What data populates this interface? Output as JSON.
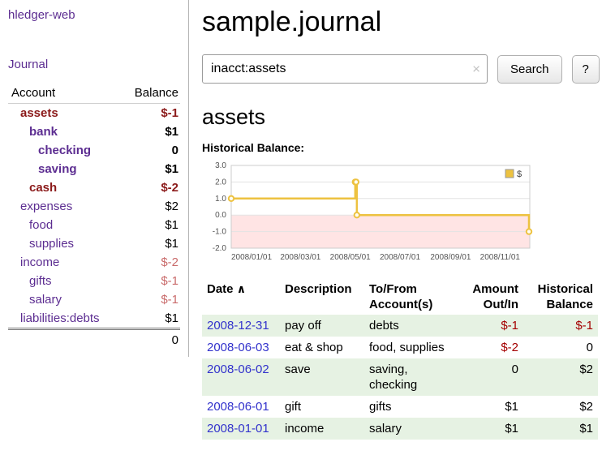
{
  "app": {
    "title": "hledger-web"
  },
  "sidebar": {
    "journal_link": "Journal",
    "accounts_table": {
      "col_account": "Account",
      "col_balance": "Balance",
      "rows": [
        {
          "account": "assets",
          "balance": "$-1",
          "indent": 1,
          "bold": true,
          "account_color": "red",
          "balance_color": "red"
        },
        {
          "account": "bank",
          "balance": "$1",
          "indent": 2,
          "bold": true,
          "account_color": "purple",
          "balance_color": "black"
        },
        {
          "account": "checking",
          "balance": "0",
          "indent": 3,
          "bold": true,
          "account_color": "purple",
          "balance_color": "black"
        },
        {
          "account": "saving",
          "balance": "$1",
          "indent": 3,
          "bold": true,
          "account_color": "purple",
          "balance_color": "black"
        },
        {
          "account": "cash",
          "balance": "$-2",
          "indent": 2,
          "bold": true,
          "account_color": "red",
          "balance_color": "red"
        },
        {
          "account": "expenses",
          "balance": "$2",
          "indent": 1,
          "bold": false,
          "account_color": "purple",
          "balance_color": "black"
        },
        {
          "account": "food",
          "balance": "$1",
          "indent": 2,
          "bold": false,
          "account_color": "purple",
          "balance_color": "black"
        },
        {
          "account": "supplies",
          "balance": "$1",
          "indent": 2,
          "bold": false,
          "account_color": "purple",
          "balance_color": "black"
        },
        {
          "account": "income",
          "balance": "$-2",
          "indent": 1,
          "bold": false,
          "account_color": "purple",
          "balance_color": "pink"
        },
        {
          "account": "gifts",
          "balance": "$-1",
          "indent": 2,
          "bold": false,
          "account_color": "purple",
          "balance_color": "pink"
        },
        {
          "account": "salary",
          "balance": "$-1",
          "indent": 2,
          "bold": false,
          "account_color": "purple",
          "balance_color": "pink"
        },
        {
          "account": "liabilities:debts",
          "balance": "$1",
          "indent": 1,
          "bold": false,
          "account_color": "purple",
          "balance_color": "black"
        }
      ],
      "total": "0"
    }
  },
  "main": {
    "title": "sample.journal",
    "search": {
      "value": "inacct:assets",
      "clear_icon": "×",
      "search_button": "Search",
      "help_button": "?"
    },
    "account_heading": "assets"
  },
  "chart_data": {
    "type": "line",
    "step": true,
    "title": "Historical Balance:",
    "x_type": "date",
    "xlim": [
      "2008-01-01",
      "2009-01-01"
    ],
    "ylim": [
      -2,
      3
    ],
    "yticks": [
      3.0,
      2.0,
      1.0,
      0.0,
      -1.0,
      -2.0
    ],
    "xticks": [
      "2008/01/01",
      "2008/03/01",
      "2008/05/01",
      "2008/07/01",
      "2008/09/01",
      "2008/11/01"
    ],
    "series": [
      {
        "name": "$",
        "color": "#edc240",
        "points": [
          [
            "2008-01-01",
            1
          ],
          [
            "2008-06-01",
            2
          ],
          [
            "2008-06-02",
            2
          ],
          [
            "2008-06-03",
            0
          ],
          [
            "2008-12-31",
            -1
          ]
        ]
      }
    ],
    "legend_position": "top-right",
    "grid": true,
    "negative_region_color": "#ffe4e4"
  },
  "register_table": {
    "headers": {
      "date": "Date",
      "sort_indicator": "∧",
      "description": "Description",
      "account": "To/From Account(s)",
      "amount": "Amount Out/In",
      "balance": "Historical Balance"
    },
    "rows": [
      {
        "date": "2008-12-31",
        "description": "pay off",
        "account": "debts",
        "amount": "$-1",
        "balance": "$-1"
      },
      {
        "date": "2008-06-03",
        "description": "eat & shop",
        "account": "food, supplies",
        "amount": "$-2",
        "balance": "0"
      },
      {
        "date": "2008-06-02",
        "description": "save",
        "account": "saving, checking",
        "amount": "0",
        "balance": "$2"
      },
      {
        "date": "2008-06-01",
        "description": "gift",
        "account": "gifts",
        "amount": "$1",
        "balance": "$2"
      },
      {
        "date": "2008-01-01",
        "description": "income",
        "account": "salary",
        "amount": "$1",
        "balance": "$1"
      }
    ]
  },
  "colors": {
    "link_purple": "#5c2d91",
    "negative_dark": "#8b1a1a",
    "negative_light": "#c96b6b",
    "date_link_blue": "#3333cc",
    "table_negative": "#a40000",
    "row_green": "#e6f2e3",
    "chart_line": "#edc240"
  }
}
